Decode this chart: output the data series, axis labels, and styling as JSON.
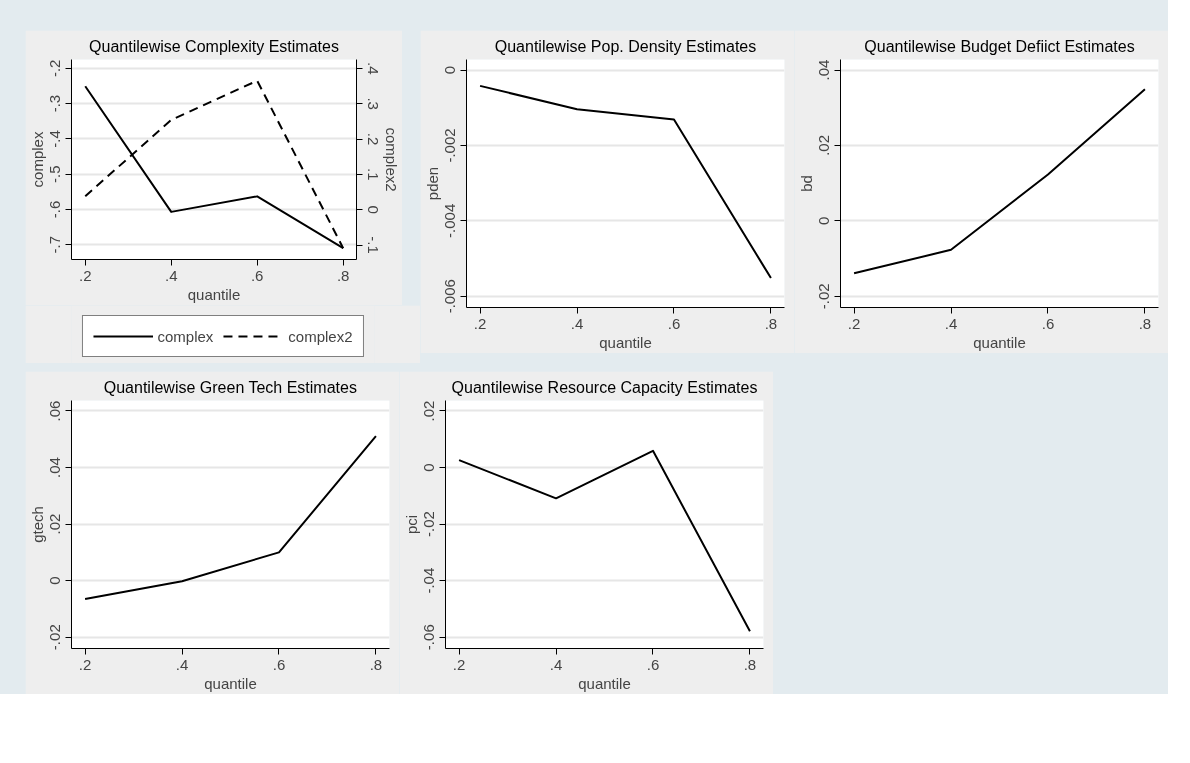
{
  "chart_data": [
    {
      "type": "line",
      "title": "Quantilewise Complexity Estimates",
      "xlabel": "quantile",
      "ylabel": "complex",
      "y2label": "complex2",
      "x": [
        0.2,
        0.4,
        0.6,
        0.8
      ],
      "series": [
        {
          "name": "complex",
          "color": "#000000",
          "line_style": "solid",
          "values": [
            -0.251,
            -0.607,
            -0.563,
            -0.71
          ]
        },
        {
          "name": "complex2",
          "color": "#000000",
          "line_style": "dashed",
          "axis": "y2",
          "values": [
            0.038,
            0.254,
            0.365,
            -0.109
          ]
        }
      ],
      "xlim": [
        0.168,
        0.831
      ],
      "xticks": [
        {
          "value": 0.2,
          "label": ".2"
        },
        {
          "value": 0.4,
          "label": ".4"
        },
        {
          "value": 0.6,
          "label": ".6"
        },
        {
          "value": 0.8,
          "label": ".8"
        }
      ],
      "ylim": [
        -0.742,
        -0.175
      ],
      "yticks": [
        {
          "value": -0.7,
          "label": "-.7"
        },
        {
          "value": -0.6,
          "label": "-.6"
        },
        {
          "value": -0.5,
          "label": "-.5"
        },
        {
          "value": -0.4,
          "label": "-.4"
        },
        {
          "value": -0.3,
          "label": "-.3"
        },
        {
          "value": -0.2,
          "label": "-.2"
        }
      ],
      "y2lim": [
        -0.141,
        0.425
      ],
      "y2ticks": [
        {
          "value": -0.1,
          "label": "-.1"
        },
        0,
        {
          "value": 0.1,
          "label": ".1"
        },
        {
          "value": 0.2,
          "label": ".2"
        },
        {
          "value": 0.3,
          "label": ".3"
        },
        {
          "value": 0.4,
          "label": ".4"
        }
      ],
      "grid": "y",
      "legend": "bottom"
    },
    {
      "type": "line",
      "title": "Quantilewise Pop. Density Estimates",
      "xlabel": "quantile",
      "ylabel": "pden",
      "x": [
        0.2,
        0.4,
        0.6,
        0.8
      ],
      "series": [
        {
          "color": "#000000",
          "values": [
            -0.00042,
            -0.00104,
            -0.00131,
            -0.00552
          ]
        }
      ],
      "xlim": [
        0.172,
        0.828
      ],
      "xticks": [
        {
          "value": 0.2,
          "label": ".2"
        },
        {
          "value": 0.4,
          "label": ".4"
        },
        {
          "value": 0.6,
          "label": ".6"
        },
        {
          "value": 0.8,
          "label": ".8"
        }
      ],
      "ylim": [
        -0.0063,
        0.00028
      ],
      "yticks": [
        {
          "value": -0.006,
          "label": "-.006"
        },
        {
          "value": -0.004,
          "label": "-.004"
        },
        {
          "value": -0.002,
          "label": "-.002"
        },
        0
      ],
      "grid": "y"
    },
    {
      "type": "line",
      "title": "Quantilewise Budget Defiict Estimates",
      "xlabel": "quantile",
      "ylabel": "bd",
      "x": [
        0.2,
        0.4,
        0.6,
        0.8
      ],
      "series": [
        {
          "color": "#000000",
          "values": [
            -0.0139,
            -0.0077,
            0.0123,
            0.0349
          ]
        }
      ],
      "xlim": [
        0.172,
        0.828
      ],
      "xticks": [
        {
          "value": 0.2,
          "label": ".2"
        },
        {
          "value": 0.4,
          "label": ".4"
        },
        {
          "value": 0.6,
          "label": ".6"
        },
        {
          "value": 0.8,
          "label": ".8"
        }
      ],
      "ylim": [
        -0.023,
        0.0428
      ],
      "yticks": [
        {
          "value": -0.02,
          "label": "-.02"
        },
        0,
        {
          "value": 0.02,
          "label": ".02"
        },
        {
          "value": 0.04,
          "label": ".04"
        }
      ],
      "grid": "y"
    },
    {
      "type": "line",
      "title": "Quantilewise Green Tech Estimates",
      "xlabel": "quantile",
      "ylabel": "gtech",
      "x": [
        0.2,
        0.4,
        0.6,
        0.8
      ],
      "series": [
        {
          "color": "#000000",
          "values": [
            -0.0065,
            -0.0002,
            0.01,
            0.0511
          ]
        }
      ],
      "xlim": [
        0.172,
        0.828
      ],
      "xticks": [
        {
          "value": 0.2,
          "label": ".2"
        },
        {
          "value": 0.4,
          "label": ".4"
        },
        {
          "value": 0.6,
          "label": ".6"
        },
        {
          "value": 0.8,
          "label": ".8"
        }
      ],
      "ylim": [
        -0.024,
        0.0637
      ],
      "yticks": [
        {
          "value": -0.02,
          "label": "-.02"
        },
        0,
        {
          "value": 0.02,
          "label": ".02"
        },
        {
          "value": 0.04,
          "label": ".04"
        },
        {
          "value": 0.06,
          "label": ".06"
        }
      ],
      "grid": "y"
    },
    {
      "type": "line",
      "title": "Quantilewise Resource Capacity Estimates",
      "xlabel": "quantile",
      "ylabel": "pci",
      "x": [
        0.2,
        0.4,
        0.6,
        0.8
      ],
      "series": [
        {
          "color": "#000000",
          "values": [
            0.0026,
            -0.0109,
            0.0059,
            -0.0579
          ]
        }
      ],
      "xlim": [
        0.172,
        0.828
      ],
      "xticks": [
        {
          "value": 0.2,
          "label": ".2"
        },
        {
          "value": 0.4,
          "label": ".4"
        },
        {
          "value": 0.6,
          "label": ".6"
        },
        {
          "value": 0.8,
          "label": ".8"
        }
      ],
      "ylim": [
        -0.064,
        0.0237
      ],
      "yticks": [
        {
          "value": -0.06,
          "label": "-.06"
        },
        {
          "value": -0.04,
          "label": "-.04"
        },
        {
          "value": -0.02,
          "label": "-.02"
        },
        0,
        {
          "value": 0.02,
          "label": ".02"
        }
      ],
      "grid": "y"
    }
  ]
}
